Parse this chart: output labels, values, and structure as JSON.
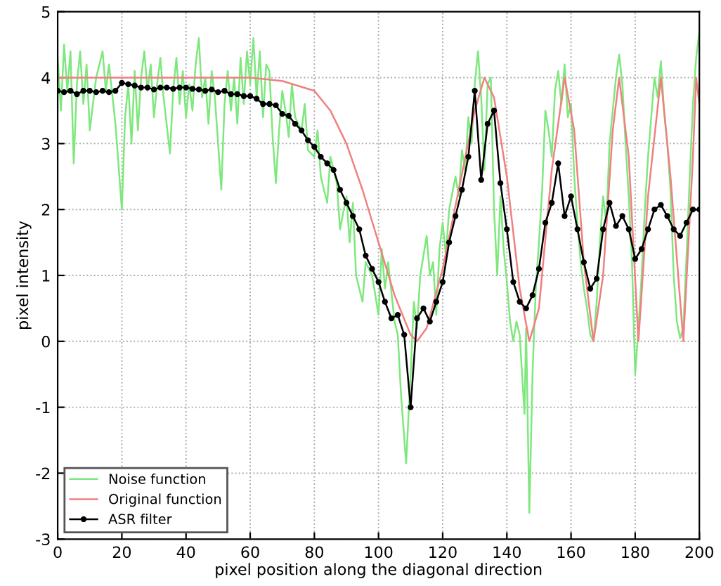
{
  "chart_data": {
    "type": "line",
    "xlabel": "pixel position along the diagonal direction",
    "ylabel": "pixel intensity",
    "xlim": [
      0,
      200
    ],
    "ylim": [
      -3,
      5
    ],
    "xticks": [
      0,
      20,
      40,
      60,
      80,
      100,
      120,
      140,
      160,
      180,
      200
    ],
    "yticks": [
      -3,
      -2,
      -1,
      0,
      1,
      2,
      3,
      4,
      5
    ],
    "grid": true,
    "legend": "bottom left",
    "line_style": "solid",
    "series": [
      {
        "name": "Noise function",
        "color": "#7ee87e",
        "marker": "none",
        "x": [
          0,
          1,
          2,
          3,
          4,
          5,
          6,
          7,
          8,
          9,
          10,
          12,
          14,
          15,
          16,
          18,
          20,
          21,
          22,
          23,
          24,
          25,
          26,
          27,
          28,
          29,
          30,
          31,
          32,
          33,
          35,
          36,
          37,
          38,
          39,
          40,
          41,
          42,
          43,
          44,
          45,
          46,
          47,
          48,
          49,
          50,
          51,
          52,
          53,
          54,
          55,
          56,
          57,
          58,
          59,
          60,
          61,
          62,
          63,
          64,
          65,
          66,
          67,
          68,
          69,
          70,
          71,
          72,
          73,
          74,
          76,
          77,
          78,
          80,
          81,
          82,
          84,
          85,
          87,
          88,
          90,
          91,
          92,
          93,
          95,
          96,
          98,
          100,
          101,
          102,
          103,
          105,
          106,
          107,
          108.6,
          110,
          111,
          112,
          113,
          115,
          116,
          117,
          118,
          119,
          120,
          121,
          122,
          124,
          125,
          126,
          127,
          128,
          129,
          130,
          131,
          132,
          133,
          134,
          135,
          136,
          137,
          138,
          139,
          140,
          141,
          142,
          143,
          144,
          145.5,
          146,
          147,
          148,
          149,
          150,
          151,
          152,
          153,
          154,
          155,
          156,
          157,
          158,
          159,
          160,
          161,
          162,
          163,
          164,
          165,
          166,
          167,
          168,
          169,
          170,
          171,
          172,
          173,
          174,
          175,
          176,
          177,
          178,
          179,
          180,
          181,
          182,
          183,
          184,
          185,
          186,
          187,
          188,
          189,
          190,
          191,
          192,
          193,
          194,
          195,
          196,
          197,
          198,
          199,
          200
        ],
        "values": [
          4.3,
          3.5,
          4.5,
          3.8,
          4.4,
          2.7,
          3.9,
          4.4,
          3.6,
          4.2,
          3.2,
          4.0,
          4.4,
          3.8,
          4.2,
          3.3,
          2.0,
          3.4,
          3.9,
          3.0,
          4.1,
          3.2,
          4.0,
          4.4,
          3.8,
          4.2,
          3.4,
          3.9,
          4.3,
          3.7,
          2.85,
          3.8,
          4.3,
          3.6,
          4.1,
          3.4,
          3.9,
          3.5,
          4.2,
          4.6,
          3.7,
          4.0,
          3.3,
          4.1,
          3.7,
          3.0,
          2.3,
          3.6,
          4.1,
          3.5,
          4.0,
          3.3,
          4.3,
          3.6,
          4.4,
          3.9,
          4.6,
          3.7,
          4.4,
          3.4,
          4.2,
          4.1,
          3.1,
          2.4,
          3.2,
          3.8,
          3.5,
          3.1,
          3.9,
          3.4,
          3.2,
          3.6,
          2.9,
          2.8,
          3.2,
          2.5,
          2.1,
          2.8,
          2.4,
          1.7,
          2.2,
          1.5,
          2.1,
          1.0,
          0.6,
          1.2,
          1.0,
          0.4,
          1.4,
          0.8,
          1.2,
          0.3,
          0.1,
          -0.8,
          -1.85,
          -0.5,
          0.6,
          0.2,
          1.0,
          1.6,
          1.0,
          1.2,
          0.4,
          1.4,
          1.8,
          1.3,
          2.0,
          2.5,
          2.2,
          2.9,
          2.6,
          3.4,
          3.0,
          3.9,
          4.4,
          3.7,
          2.6,
          3.9,
          4.0,
          2.0,
          1.0,
          2.2,
          1.4,
          0.9,
          0.3,
          0.0,
          0.3,
          0.1,
          -1.1,
          0.2,
          -2.6,
          -0.5,
          0.8,
          1.5,
          2.3,
          3.5,
          3.2,
          2.8,
          3.8,
          4.1,
          3.6,
          4.2,
          3.4,
          3.6,
          2.5,
          1.8,
          1.2,
          0.8,
          0.5,
          0.1,
          0.0,
          0.6,
          1.5,
          2.2,
          1.8,
          3.0,
          3.5,
          4.0,
          4.35,
          3.9,
          3.0,
          2.2,
          1.2,
          -0.5,
          0.2,
          1.0,
          2.0,
          2.8,
          3.4,
          4.0,
          3.7,
          4.25,
          3.5,
          3.0,
          2.3,
          1.0,
          0.3,
          0.05,
          0.2,
          1.3,
          2.5,
          3.6,
          4.3,
          4.7
        ]
      },
      {
        "name": "Original function",
        "color": "#f08080",
        "marker": "none",
        "x": [
          0,
          60,
          70,
          80,
          85,
          90,
          95,
          100,
          105,
          110,
          112,
          115,
          120,
          125,
          130,
          133,
          136,
          140,
          144,
          147,
          150,
          154,
          158,
          161,
          164,
          167,
          170,
          173,
          175,
          178,
          181,
          184,
          188,
          191,
          195,
          198,
          199,
          200
        ],
        "values": [
          4,
          4,
          3.95,
          3.8,
          3.5,
          3.0,
          2.3,
          1.5,
          0.7,
          0.1,
          0,
          0.2,
          1.1,
          2.3,
          3.5,
          4,
          3.7,
          2.5,
          0.8,
          0,
          0.5,
          2.6,
          4,
          3.2,
          1.2,
          0,
          1.0,
          3.2,
          4,
          2.8,
          0,
          2.2,
          4,
          2.5,
          0,
          2.8,
          4,
          3.6
        ]
      },
      {
        "name": "ASR filter",
        "color": "#000000",
        "marker": "circle",
        "x": [
          0,
          2,
          4,
          6,
          8,
          10,
          12,
          14,
          16,
          18,
          20,
          22,
          24,
          26,
          28,
          30,
          32,
          34,
          36,
          38,
          40,
          42,
          44,
          46,
          48,
          50,
          52,
          54,
          56,
          58,
          60,
          62,
          64,
          66,
          68,
          70,
          72,
          74,
          76,
          78,
          80,
          82,
          84,
          86,
          88,
          90,
          92,
          94,
          96,
          98,
          100,
          102,
          104,
          106,
          108,
          110,
          112,
          114,
          116,
          118,
          120,
          122,
          124,
          126,
          128,
          130,
          132,
          134,
          136,
          138,
          140,
          142,
          144,
          146,
          148,
          150,
          152,
          154,
          156,
          158,
          160,
          162,
          164,
          166,
          168,
          170,
          172,
          174,
          176,
          178,
          180,
          182,
          184,
          186,
          188,
          190,
          192,
          194,
          196,
          198,
          200
        ],
        "values": [
          3.8,
          3.78,
          3.8,
          3.75,
          3.8,
          3.8,
          3.78,
          3.8,
          3.78,
          3.8,
          3.92,
          3.9,
          3.88,
          3.85,
          3.85,
          3.82,
          3.85,
          3.85,
          3.83,
          3.85,
          3.85,
          3.83,
          3.82,
          3.8,
          3.82,
          3.78,
          3.8,
          3.75,
          3.75,
          3.72,
          3.72,
          3.68,
          3.6,
          3.6,
          3.58,
          3.45,
          3.42,
          3.3,
          3.2,
          3.05,
          2.95,
          2.8,
          2.7,
          2.6,
          2.3,
          2.1,
          1.9,
          1.7,
          1.3,
          1.1,
          0.9,
          0.6,
          0.35,
          0.4,
          0.1,
          -1.0,
          0.35,
          0.5,
          0.3,
          0.6,
          0.9,
          1.5,
          1.9,
          2.3,
          2.8,
          3.8,
          2.45,
          3.3,
          3.5,
          2.4,
          1.7,
          0.9,
          0.6,
          0.5,
          0.7,
          1.1,
          1.8,
          2.1,
          2.7,
          1.9,
          2.2,
          1.7,
          1.2,
          0.8,
          0.95,
          1.7,
          2.1,
          1.75,
          1.9,
          1.7,
          1.25,
          1.4,
          1.7,
          2.0,
          2.07,
          1.9,
          1.7,
          1.6,
          1.8,
          2.0,
          2.0
        ]
      }
    ]
  }
}
